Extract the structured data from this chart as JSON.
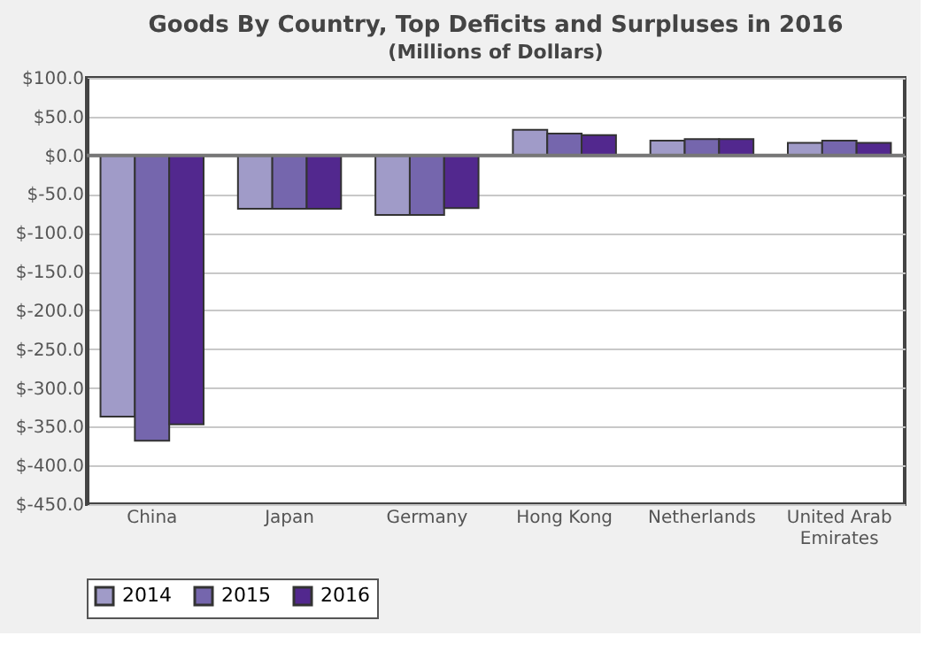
{
  "chart_data": {
    "type": "bar",
    "title": "Goods By Country, Top Deficits and Surpluses in 2016",
    "subtitle": "(Millions of Dollars)",
    "categories": [
      "China",
      "Japan",
      "Germany",
      "Hong Kong",
      "Netherlands",
      "United Arab Emirates"
    ],
    "series": [
      {
        "name": "2014",
        "color": "#a09bc8",
        "values": [
          -337,
          -69,
          -77,
          33,
          19,
          16
        ]
      },
      {
        "name": "2015",
        "color": "#7566ad",
        "values": [
          -368,
          -69,
          -77,
          28,
          21,
          19
        ]
      },
      {
        "name": "2016",
        "color": "#52288e",
        "values": [
          -347,
          -69,
          -68,
          26,
          21,
          16
        ]
      }
    ],
    "ylim": [
      -450,
      100
    ],
    "yticks": [
      {
        "value": 100,
        "label": "$100.0"
      },
      {
        "value": 50,
        "label": "$50.0"
      },
      {
        "value": 0,
        "label": "$0.0"
      },
      {
        "value": -50,
        "label": "$-50.0"
      },
      {
        "value": -100,
        "label": "$-100.0"
      },
      {
        "value": -150,
        "label": "$-150.0"
      },
      {
        "value": -200,
        "label": "$-200.0"
      },
      {
        "value": -250,
        "label": "$-250.0"
      },
      {
        "value": -300,
        "label": "$-300.0"
      },
      {
        "value": -350,
        "label": "$-350.0"
      },
      {
        "value": -400,
        "label": "$-400.0"
      },
      {
        "value": -450,
        "label": "$-450.0"
      }
    ],
    "grid": "y",
    "legend": "bottom"
  }
}
